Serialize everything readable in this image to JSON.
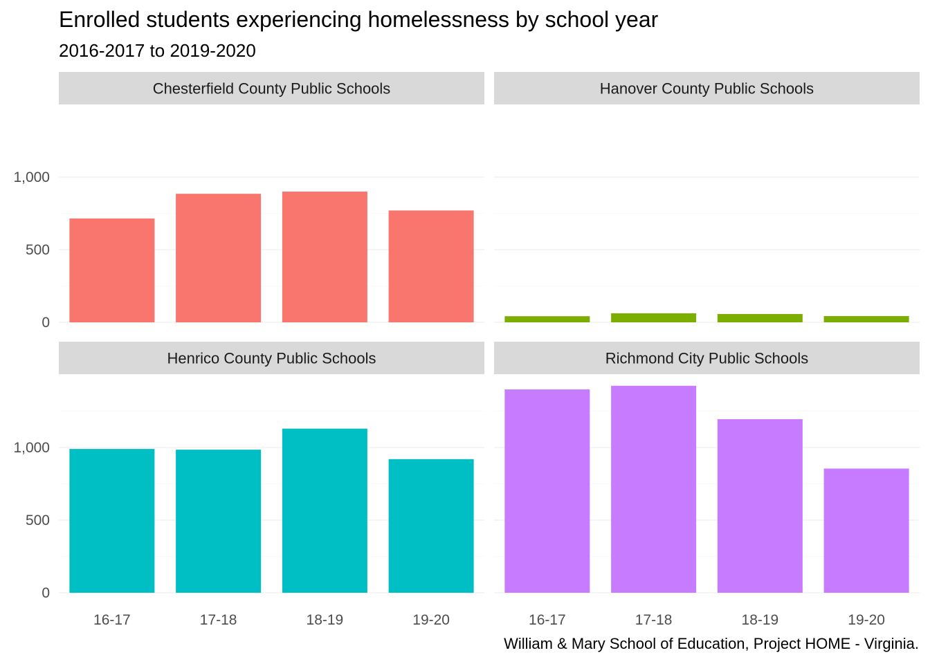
{
  "chart_data": {
    "type": "bar",
    "title": "Enrolled students experiencing homelessness by school year",
    "subtitle": "2016-2017 to 2019-2020",
    "caption": "William & Mary School of Education, Project HOME - Virginia.",
    "xlabel": "",
    "ylabel": "",
    "categories": [
      "16-17",
      "17-18",
      "18-19",
      "19-20"
    ],
    "layout": "2x2 facets, free y scales per row",
    "grid": true,
    "legend": "none",
    "panels": [
      {
        "name": "Chesterfield County Public Schools",
        "color": "#F8766D",
        "values": [
          715,
          885,
          900,
          770
        ],
        "ylim": [
          0,
          1000
        ],
        "yticks": [
          0,
          500,
          1000
        ]
      },
      {
        "name": "Hanover County Public Schools",
        "color": "#7CAE00",
        "values": [
          42,
          62,
          57,
          43
        ],
        "ylim": [
          0,
          1000
        ],
        "yticks": [
          0,
          500,
          1000
        ]
      },
      {
        "name": "Henrico County Public Schools",
        "color": "#00BFC4",
        "values": [
          990,
          985,
          1130,
          920
        ],
        "ylim": [
          0,
          1425
        ],
        "yticks": [
          0,
          500,
          1000
        ]
      },
      {
        "name": "Richmond City Public Schools",
        "color": "#C77CFF",
        "values": [
          1400,
          1425,
          1195,
          855
        ],
        "ylim": [
          0,
          1425
        ],
        "yticks": [
          0,
          500,
          1000
        ]
      }
    ]
  }
}
